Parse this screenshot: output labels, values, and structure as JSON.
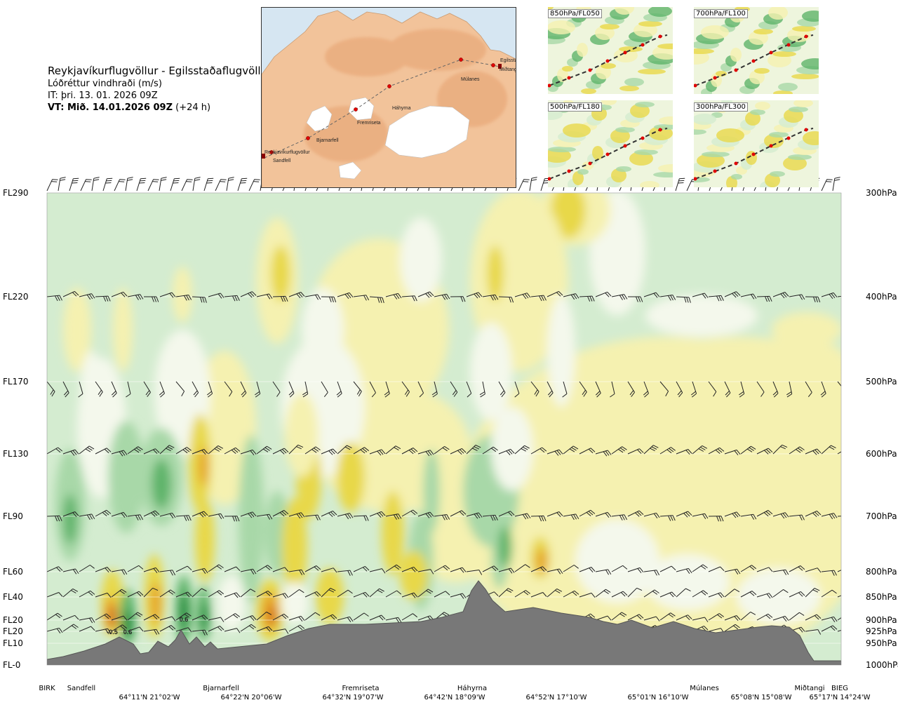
{
  "header": {
    "title": "Reykjavíkurflugvöllur - Egilsstaðaflugvöllur",
    "subtitle": "Lóðréttur vindhraði (m/s)",
    "issue_time": "IT: þri. 13. 01. 2026 09Z",
    "valid_prefix": "VT: Mið. 14.01.2026 09Z",
    "valid_suffix": "(+24 h)"
  },
  "map": {
    "places": [
      "Reykjavíkurflugvöllur",
      "Sandfell",
      "Bjarnarfell",
      "Fremriseta",
      "Háhyrna",
      "Múlanes",
      "Egilsstaðir",
      "Miðtangi"
    ]
  },
  "panels": [
    "850hPa/FL050",
    "700hPa/FL100",
    "500hPa/FL180",
    "300hPa/FL300"
  ],
  "chart_data": {
    "type": "heatmap",
    "title": "Reykjavíkurflugvöllur - Egilsstaðaflugvöllur",
    "variable": "Lóðréttur vindhraði (m/s)",
    "levels": [
      {
        "fl": "FL290",
        "hpa": "300hPa",
        "p": 300
      },
      {
        "fl": "FL220",
        "hpa": "400hPa",
        "p": 400
      },
      {
        "fl": "FL170",
        "hpa": "500hPa",
        "p": 500
      },
      {
        "fl": "FL130",
        "hpa": "600hPa",
        "p": 600
      },
      {
        "fl": "FL90",
        "hpa": "700hPa",
        "p": 700
      },
      {
        "fl": "FL60",
        "hpa": "800hPa",
        "p": 800
      },
      {
        "fl": "FL40",
        "hpa": "850hPa",
        "p": 850
      },
      {
        "fl": "FL20",
        "hpa": "900hPa",
        "p": 900
      },
      {
        "fl": "FL20",
        "hpa": "925hPa",
        "p": 925
      },
      {
        "fl": "FL10",
        "hpa": "950hPa",
        "p": 950
      },
      {
        "fl": "FL-0",
        "hpa": "1000hPa",
        "p": 1000
      }
    ],
    "stations": [
      "BIRK",
      "Sandfell",
      "Bjarnarfell",
      "Fremriseta",
      "Háhyrna",
      "Múlanes",
      "Miðtangi",
      "BIEG"
    ],
    "coordinates": [
      "64°11'N 21°02'W",
      "64°22'N 20°06'W",
      "64°32'N 19°07'W",
      "64°42'N 18°09'W",
      "64°52'N 17°10'W",
      "65°01'N 16°10'W",
      "65°08'N 15°08'W",
      "65°17'N 14°24'W"
    ],
    "annotations": [
      "-0.5",
      "0.6",
      "0.6"
    ],
    "colors": {
      "strong_up": "#1f8a3a",
      "up": "#5fb46a",
      "weak_up": "#a8d8a8",
      "near_zero_up": "#d4ecd0",
      "near_zero_down": "#f5f1b0",
      "weak_down": "#e8d84a",
      "down": "#e6a42a",
      "strong_down": "#d4661a",
      "terrain": "#787878"
    }
  }
}
